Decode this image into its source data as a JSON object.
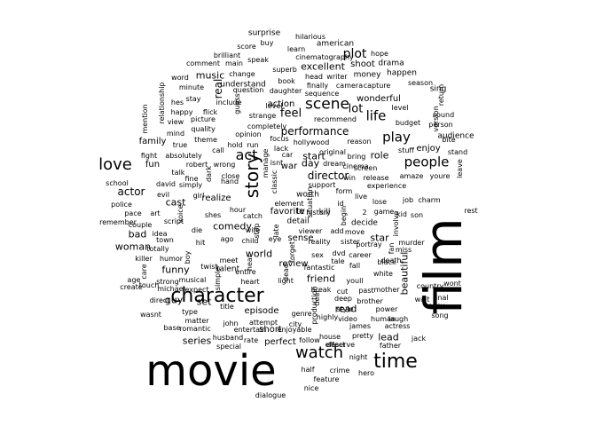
{
  "words": [
    {
      "text": "movie",
      "r": false
    },
    {
      "text": "film",
      "r": true
    },
    {
      "text": "character",
      "r": false
    },
    {
      "text": "story",
      "r": true
    },
    {
      "text": "time",
      "r": false
    },
    {
      "text": "watch",
      "r": false
    },
    {
      "text": "love",
      "r": false
    },
    {
      "text": "people",
      "r": false
    },
    {
      "text": "scene",
      "r": false
    },
    {
      "text": "life",
      "r": false
    },
    {
      "text": "play",
      "r": false
    },
    {
      "text": "act",
      "r": false
    },
    {
      "text": "performance",
      "r": false
    },
    {
      "text": "plot",
      "r": false
    },
    {
      "text": "actor",
      "r": false
    },
    {
      "text": "director",
      "r": false
    },
    {
      "text": "feel",
      "r": false
    },
    {
      "text": "lot",
      "r": false
    },
    {
      "text": "real",
      "r": true
    },
    {
      "text": "music",
      "r": false
    },
    {
      "text": "excellent",
      "r": false
    },
    {
      "text": "role",
      "r": false
    },
    {
      "text": "day",
      "r": false
    },
    {
      "text": "start",
      "r": false
    },
    {
      "text": "series",
      "r": false
    },
    {
      "text": "funny",
      "r": false
    },
    {
      "text": "world",
      "r": false
    },
    {
      "text": "comedy",
      "r": false
    },
    {
      "text": "cast",
      "r": false
    },
    {
      "text": "family",
      "r": false
    },
    {
      "text": "fun",
      "r": false
    },
    {
      "text": "woman",
      "r": false
    },
    {
      "text": "bad",
      "r": false
    },
    {
      "text": "guy",
      "r": false
    },
    {
      "text": "set",
      "r": false
    },
    {
      "text": "friend",
      "r": false
    },
    {
      "text": "beautiful",
      "r": true
    },
    {
      "text": "star",
      "r": false
    },
    {
      "text": "read",
      "r": false
    },
    {
      "text": "lead",
      "r": false
    },
    {
      "text": "short",
      "r": false
    },
    {
      "text": "perfect",
      "r": false
    },
    {
      "text": "episode",
      "r": false
    },
    {
      "text": "action",
      "r": false
    },
    {
      "text": "enjoy",
      "r": false
    },
    {
      "text": "audience",
      "r": false
    },
    {
      "text": "war",
      "r": false
    },
    {
      "text": "kill",
      "r": false
    },
    {
      "text": "wonderful",
      "r": false
    },
    {
      "text": "shoot",
      "r": false
    },
    {
      "text": "drama",
      "r": false
    },
    {
      "text": "money",
      "r": false
    },
    {
      "text": "happen",
      "r": false
    },
    {
      "text": "american",
      "r": false
    },
    {
      "text": "surprise",
      "r": false
    },
    {
      "text": "hilarious",
      "r": false
    },
    {
      "text": "buy",
      "r": false
    },
    {
      "text": "score",
      "r": false
    },
    {
      "text": "learn",
      "r": false
    },
    {
      "text": "sing",
      "r": false
    },
    {
      "text": "cinematography",
      "r": false
    },
    {
      "text": "brilliant",
      "r": false
    },
    {
      "text": "speak",
      "r": false
    },
    {
      "text": "superb",
      "r": false
    },
    {
      "text": "hope",
      "r": false
    },
    {
      "text": "comment",
      "r": false
    },
    {
      "text": "main",
      "r": false
    },
    {
      "text": "change",
      "r": false
    },
    {
      "text": "word",
      "r": false
    },
    {
      "text": "head",
      "r": false
    },
    {
      "text": "writer",
      "r": false
    },
    {
      "text": "level",
      "r": false
    },
    {
      "text": "return",
      "r": true
    },
    {
      "text": "understand",
      "r": false
    },
    {
      "text": "book",
      "r": false
    },
    {
      "text": "finally",
      "r": false
    },
    {
      "text": "camera",
      "r": false
    },
    {
      "text": "capture",
      "r": false
    },
    {
      "text": "season",
      "r": false
    },
    {
      "text": "minute",
      "r": false
    },
    {
      "text": "question",
      "r": false
    },
    {
      "text": "daughter",
      "r": false
    },
    {
      "text": "sequence",
      "r": false
    },
    {
      "text": "stay",
      "r": false
    },
    {
      "text": "include",
      "r": false
    },
    {
      "text": "relationship",
      "r": true
    },
    {
      "text": "hes",
      "r": false
    },
    {
      "text": "guess",
      "r": true
    },
    {
      "text": "happy",
      "r": false
    },
    {
      "text": "flick",
      "r": false
    },
    {
      "text": "strange",
      "r": false
    },
    {
      "text": "level",
      "r": false
    },
    {
      "text": "completely",
      "r": false
    },
    {
      "text": "budget",
      "r": false
    },
    {
      "text": "version",
      "r": true
    },
    {
      "text": "sound",
      "r": false
    },
    {
      "text": "person",
      "r": false
    },
    {
      "text": "mention",
      "r": true
    },
    {
      "text": "view",
      "r": false
    },
    {
      "text": "picture",
      "r": false
    },
    {
      "text": "recommend",
      "r": false
    },
    {
      "text": "bite",
      "r": false
    },
    {
      "text": "mind",
      "r": false
    },
    {
      "text": "quality",
      "r": false
    },
    {
      "text": "opinion",
      "r": false
    },
    {
      "text": "focus",
      "r": false
    },
    {
      "text": "hollywood",
      "r": false
    },
    {
      "text": "reason",
      "r": false
    },
    {
      "text": "stuff",
      "r": false
    },
    {
      "text": "true",
      "r": false
    },
    {
      "text": "theme",
      "r": false
    },
    {
      "text": "hold",
      "r": false
    },
    {
      "text": "run",
      "r": false
    },
    {
      "text": "lack",
      "r": false
    },
    {
      "text": "stand",
      "r": false
    },
    {
      "text": "call",
      "r": false
    },
    {
      "text": "manage",
      "r": true
    },
    {
      "text": "car",
      "r": false
    },
    {
      "text": "original",
      "r": false
    },
    {
      "text": "bring",
      "r": false
    },
    {
      "text": "fight",
      "r": false
    },
    {
      "text": "absolutely",
      "r": false
    },
    {
      "text": "isnt",
      "r": false
    },
    {
      "text": "dream",
      "r": false
    },
    {
      "text": "cinema",
      "r": false
    },
    {
      "text": "leave",
      "r": true
    },
    {
      "text": "robert",
      "r": false
    },
    {
      "text": "wrong",
      "r": false
    },
    {
      "text": "screen",
      "r": false
    },
    {
      "text": "amaze",
      "r": false
    },
    {
      "text": "youre",
      "r": false
    },
    {
      "text": "talk",
      "r": false
    },
    {
      "text": "dark",
      "r": true
    },
    {
      "text": "support",
      "r": false
    },
    {
      "text": "win",
      "r": false
    },
    {
      "text": "release",
      "r": false
    },
    {
      "text": "fine",
      "r": false
    },
    {
      "text": "close",
      "r": false
    },
    {
      "text": "classic",
      "r": true
    },
    {
      "text": "worth",
      "r": false
    },
    {
      "text": "experience",
      "r": false
    },
    {
      "text": "school",
      "r": false
    },
    {
      "text": "david",
      "r": false
    },
    {
      "text": "simply",
      "r": false
    },
    {
      "text": "hand",
      "r": false
    },
    {
      "text": "form",
      "r": false
    },
    {
      "text": "live",
      "r": false
    },
    {
      "text": "lose",
      "r": false
    },
    {
      "text": "job",
      "r": false
    },
    {
      "text": "charm",
      "r": false
    },
    {
      "text": "evil",
      "r": false
    },
    {
      "text": "girl",
      "r": false
    },
    {
      "text": "realize",
      "r": false
    },
    {
      "text": "situation",
      "r": true
    },
    {
      "text": "id",
      "r": false
    },
    {
      "text": "element",
      "r": false
    },
    {
      "text": "tv",
      "r": false
    },
    {
      "text": "favorite",
      "r": false
    },
    {
      "text": "history",
      "r": false
    },
    {
      "text": "begin",
      "r": true
    },
    {
      "text": "2",
      "r": false
    },
    {
      "text": "game",
      "r": false
    },
    {
      "text": "kid",
      "r": false
    },
    {
      "text": "son",
      "r": false
    },
    {
      "text": "police",
      "r": false
    },
    {
      "text": "pace",
      "r": false
    },
    {
      "text": "art",
      "r": false
    },
    {
      "text": "voice",
      "r": true
    },
    {
      "text": "shes",
      "r": false
    },
    {
      "text": "hour",
      "r": false
    },
    {
      "text": "catch",
      "r": false
    },
    {
      "text": "detail",
      "r": false
    },
    {
      "text": "decide",
      "r": false
    },
    {
      "text": "involve",
      "r": true
    },
    {
      "text": "rest",
      "r": false
    },
    {
      "text": "remember",
      "r": false
    },
    {
      "text": "couple",
      "r": false
    },
    {
      "text": "script",
      "r": false
    },
    {
      "text": "stop",
      "r": true
    },
    {
      "text": "late",
      "r": true
    },
    {
      "text": "viewer",
      "r": false
    },
    {
      "text": "add",
      "r": false
    },
    {
      "text": "move",
      "r": false
    },
    {
      "text": "idea",
      "r": false
    },
    {
      "text": "die",
      "r": false
    },
    {
      "text": "child",
      "r": false
    },
    {
      "text": "sense",
      "r": false
    },
    {
      "text": "reality",
      "r": false
    },
    {
      "text": "sister",
      "r": false
    },
    {
      "text": "portray",
      "r": false
    },
    {
      "text": "fan",
      "r": true
    },
    {
      "text": "miss",
      "r": false
    },
    {
      "text": "murder",
      "r": false
    },
    {
      "text": "town",
      "r": false
    },
    {
      "text": "hit",
      "r": false
    },
    {
      "text": "ago",
      "r": false
    },
    {
      "text": "wife",
      "r": false
    },
    {
      "text": "eye",
      "r": false
    },
    {
      "text": "totally",
      "r": false
    },
    {
      "text": "boy",
      "r": true
    },
    {
      "text": "hear",
      "r": true
    },
    {
      "text": "forget",
      "r": true
    },
    {
      "text": "sex",
      "r": false
    },
    {
      "text": "dvd",
      "r": false
    },
    {
      "text": "career",
      "r": false
    },
    {
      "text": "killer",
      "r": false
    },
    {
      "text": "humor",
      "r": false
    },
    {
      "text": "meet",
      "r": false
    },
    {
      "text": "talent",
      "r": false
    },
    {
      "text": "review",
      "r": false
    },
    {
      "text": "fantastic",
      "r": false
    },
    {
      "text": "tale",
      "r": false
    },
    {
      "text": "fall",
      "r": false
    },
    {
      "text": "death",
      "r": false
    },
    {
      "text": "black",
      "r": false
    },
    {
      "text": "care",
      "r": true
    },
    {
      "text": "twist",
      "r": false
    },
    {
      "text": "entire",
      "r": false
    },
    {
      "text": "dead",
      "r": true
    },
    {
      "text": "white",
      "r": false
    },
    {
      "text": "age",
      "r": false
    },
    {
      "text": "strong",
      "r": false
    },
    {
      "text": "musical",
      "r": false
    },
    {
      "text": "simple",
      "r": true
    },
    {
      "text": "heart",
      "r": false
    },
    {
      "text": "light",
      "r": false
    },
    {
      "text": "youll",
      "r": false
    },
    {
      "text": "create",
      "r": false
    },
    {
      "text": "touch",
      "r": false
    },
    {
      "text": "michael",
      "r": false
    },
    {
      "text": "expect",
      "r": false
    },
    {
      "text": "break",
      "r": false
    },
    {
      "text": "cut",
      "r": false
    },
    {
      "text": "past",
      "r": false
    },
    {
      "text": "mother",
      "r": false
    },
    {
      "text": "country",
      "r": false
    },
    {
      "text": "wont",
      "r": false
    },
    {
      "text": "direct",
      "r": false
    },
    {
      "text": "title",
      "r": false
    },
    {
      "text": "deal",
      "r": true
    },
    {
      "text": "deep",
      "r": false
    },
    {
      "text": "brother",
      "r": false
    },
    {
      "text": "power",
      "r": false
    },
    {
      "text": "wait",
      "r": false
    },
    {
      "text": "final",
      "r": false
    },
    {
      "text": "wasnt",
      "r": false
    },
    {
      "text": "type",
      "r": false
    },
    {
      "text": "production",
      "r": true
    },
    {
      "text": "style",
      "r": false
    },
    {
      "text": "easy",
      "r": false
    },
    {
      "text": "matter",
      "r": false
    },
    {
      "text": "genre",
      "r": false
    },
    {
      "text": "highly",
      "r": false
    },
    {
      "text": "video",
      "r": false
    },
    {
      "text": "human",
      "r": false
    },
    {
      "text": "laugh",
      "r": false
    },
    {
      "text": "song",
      "r": false
    },
    {
      "text": "base",
      "r": false
    },
    {
      "text": "romantic",
      "r": false
    },
    {
      "text": "john",
      "r": false
    },
    {
      "text": "attempt",
      "r": false
    },
    {
      "text": "city",
      "r": false
    },
    {
      "text": "pretty",
      "r": false
    },
    {
      "text": "james",
      "r": false
    },
    {
      "text": "actress",
      "r": false
    },
    {
      "text": "husband",
      "r": false
    },
    {
      "text": "entertain",
      "r": false
    },
    {
      "text": "enjoyable",
      "r": false
    },
    {
      "text": "house",
      "r": false
    },
    {
      "text": "father",
      "r": false
    },
    {
      "text": "jack",
      "r": false
    },
    {
      "text": "special",
      "r": false
    },
    {
      "text": "rate",
      "r": false
    },
    {
      "text": "follow",
      "r": false
    },
    {
      "text": "deserve",
      "r": false
    },
    {
      "text": "effect",
      "r": false
    },
    {
      "text": "night",
      "r": false
    },
    {
      "text": "half",
      "r": false
    },
    {
      "text": "crime",
      "r": false
    },
    {
      "text": "hero",
      "r": false
    },
    {
      "text": "nice",
      "r": false
    },
    {
      "text": "feature",
      "r": false
    },
    {
      "text": "dialogue",
      "r": false
    },
    {
      "text": "horror",
      "r": false
    },
    {
      "text": "moment",
      "r": false
    },
    {
      "text": "documentary",
      "r": false
    },
    {
      "text": "hard",
      "r": false
    }
  ]
}
